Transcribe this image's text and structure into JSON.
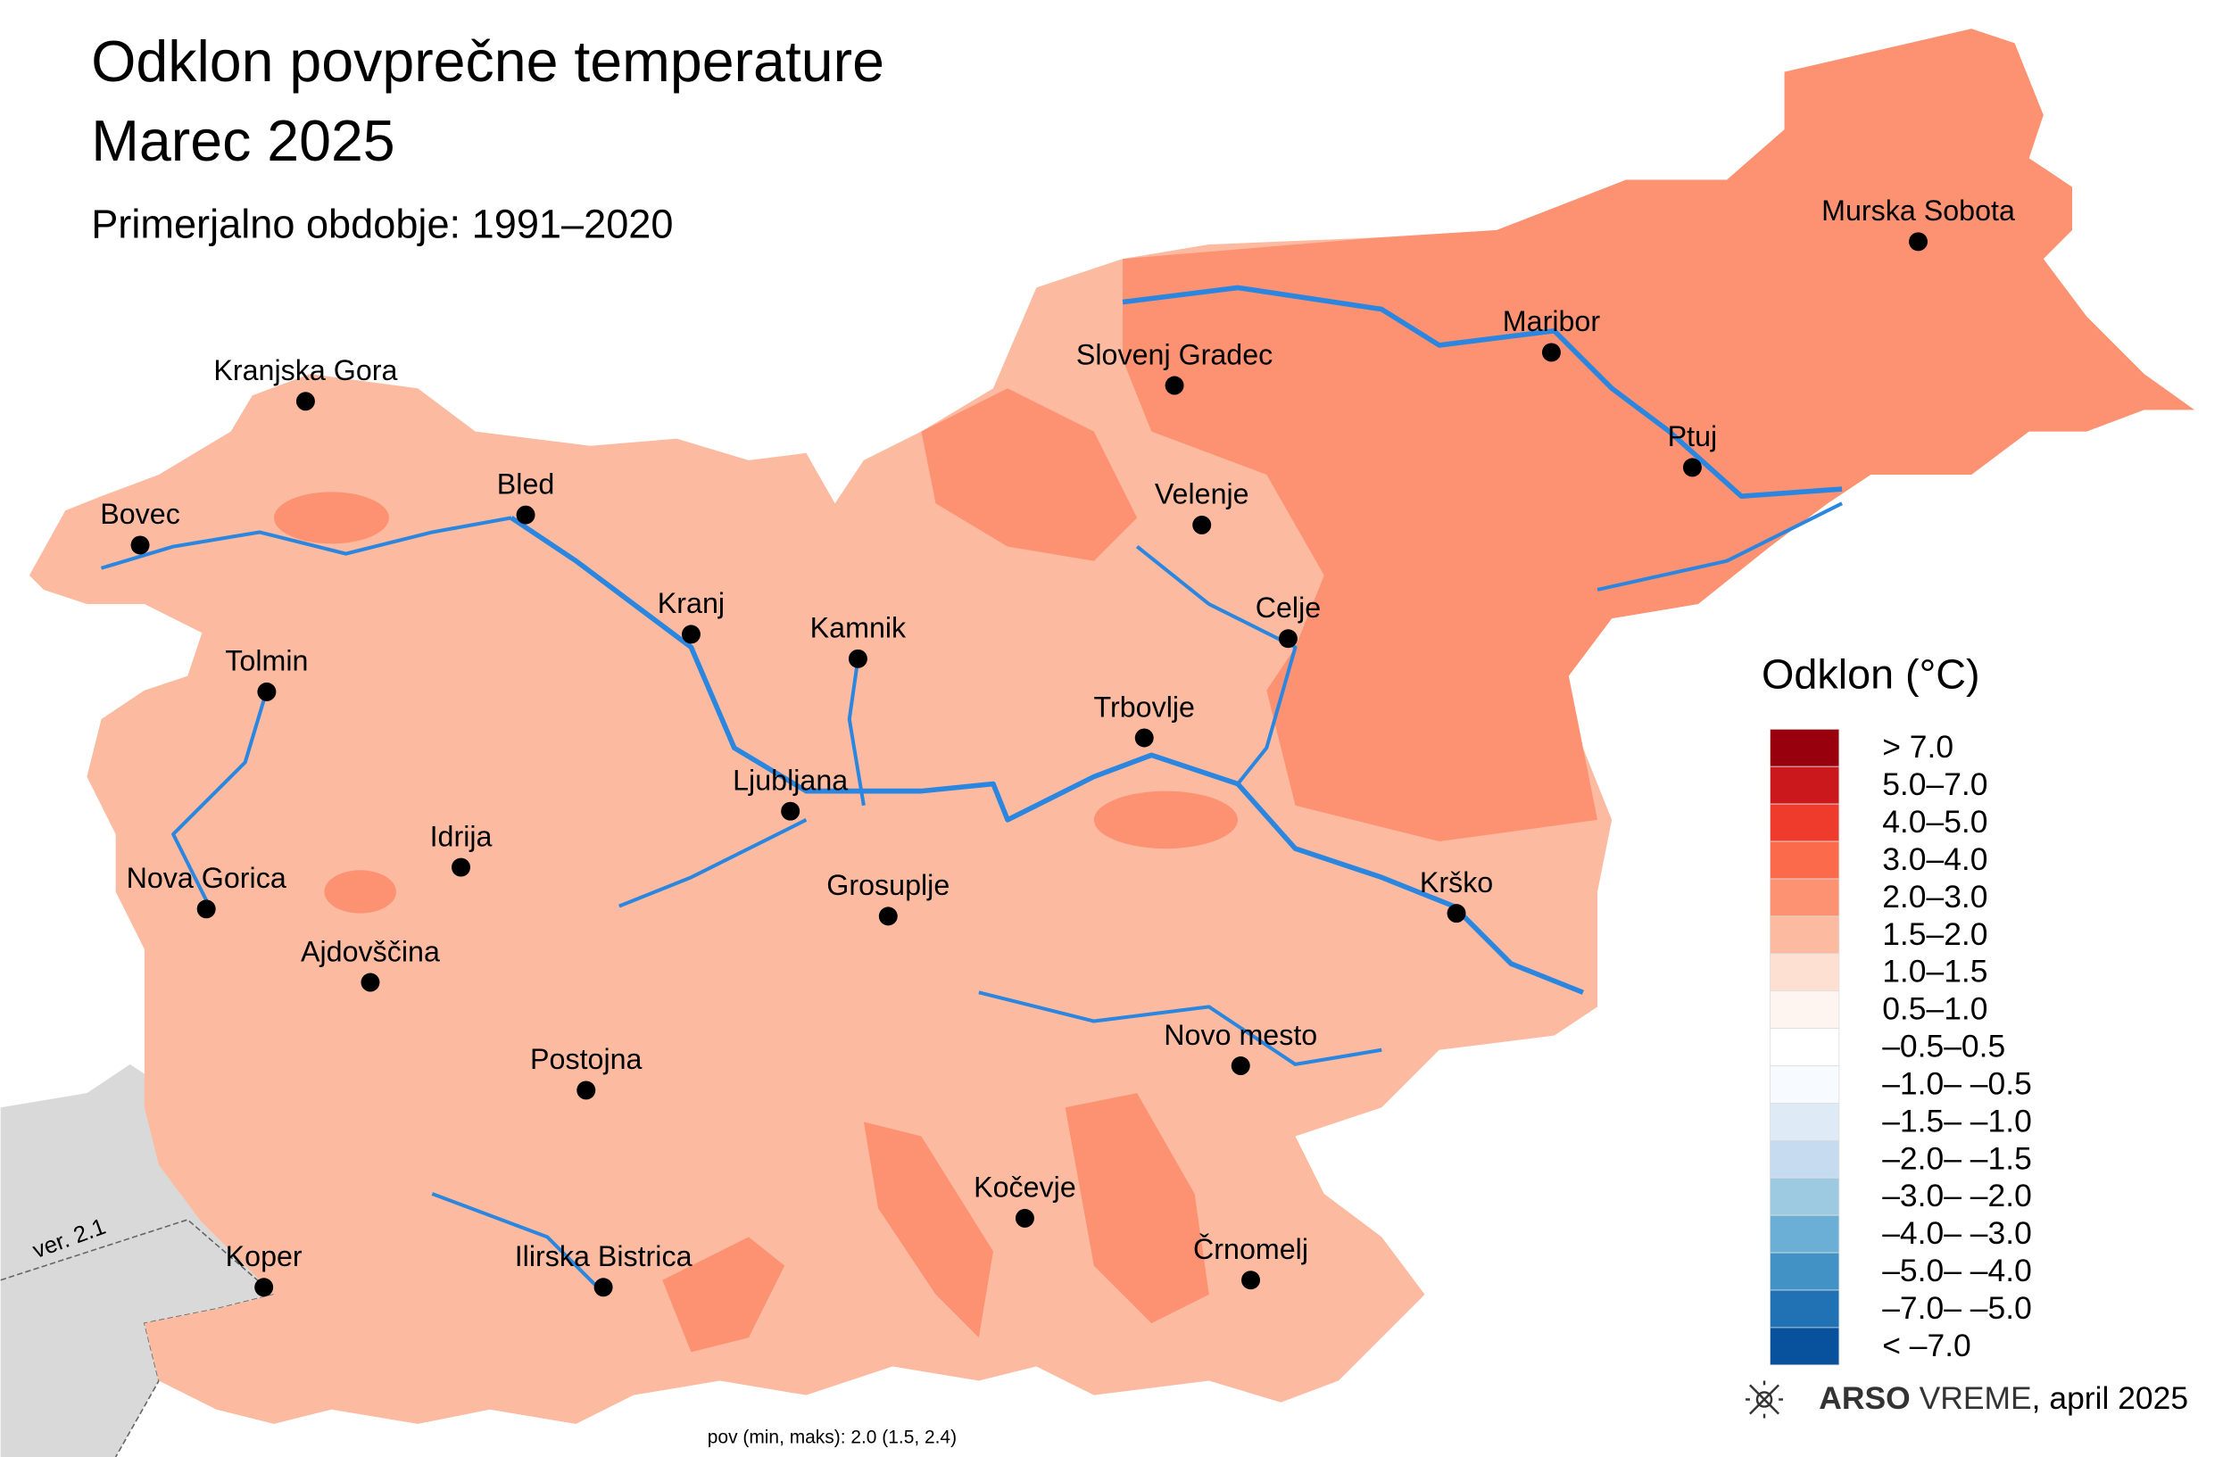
{
  "title": [
    "Odklon povprečne temperature",
    "Marec 2025"
  ],
  "subtitle": "Primerjalno obdobje: 1991–2020",
  "cities": [
    "Murska Sobota",
    "Maribor",
    "Slovenj Gradec",
    "Ptuj",
    "Velenje",
    "Celje",
    "Kranjska Gora",
    "Bled",
    "Bovec",
    "Kranj",
    "Kamnik",
    "Tolmin",
    "Trbovlje",
    "Ljubljana",
    "Idrija",
    "Nova Gorica",
    "Grosuplje",
    "Krško",
    "Ajdovščina",
    "Novo mesto",
    "Postojna",
    "Kočevje",
    "Črnomelj",
    "Koper",
    "Ilirska Bistrica"
  ],
  "legend": {
    "title": "Odklon (°C)",
    "items": [
      {
        "label": "> 7.0",
        "color": "#99000d"
      },
      {
        "label": "5.0–7.0",
        "color": "#cb181d"
      },
      {
        "label": "4.0–5.0",
        "color": "#ef3b2c"
      },
      {
        "label": "3.0–4.0",
        "color": "#fb6a4a"
      },
      {
        "label": "2.0–3.0",
        "color": "#fc9272"
      },
      {
        "label": "1.5–2.0",
        "color": "#fcbba1"
      },
      {
        "label": "1.0–1.5",
        "color": "#fee0d2"
      },
      {
        "label": "0.5–1.0",
        "color": "#fff5f0"
      },
      {
        "label": "–0.5–0.5",
        "color": "#ffffff"
      },
      {
        "label": "–1.0– –0.5",
        "color": "#f7fbff"
      },
      {
        "label": "–1.5– –1.0",
        "color": "#deebf7"
      },
      {
        "label": "–2.0– –1.5",
        "color": "#c6dbef"
      },
      {
        "label": "–3.0– –2.0",
        "color": "#9ecae1"
      },
      {
        "label": "–4.0– –3.0",
        "color": "#6baed6"
      },
      {
        "label": "–5.0– –4.0",
        "color": "#4292c6"
      },
      {
        "label": "–7.0– –5.0",
        "color": "#2171b5"
      },
      {
        "label": "< –7.0",
        "color": "#08519c"
      }
    ]
  },
  "credit": {
    "brand": "ARSO",
    "product": " VREME",
    "date": ", april 2025"
  },
  "version": "ver. 2.1",
  "stats": "pov (min, maks): 2.0 (1.5, 2.4)"
}
